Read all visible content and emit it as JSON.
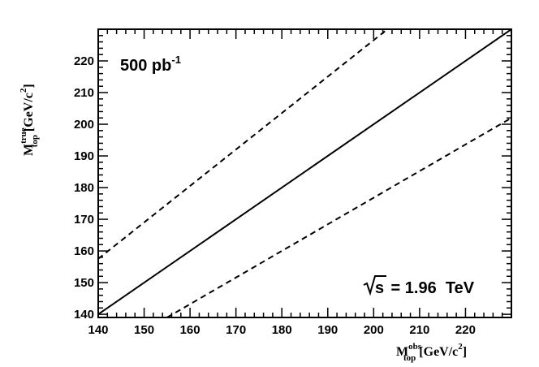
{
  "chart_data": {
    "type": "line",
    "title": "",
    "xlabel": {
      "base": "M",
      "sub": "top",
      "sup": "obs",
      "unit": "[GeV/c",
      "unit_sup": "2",
      "unit_end": "]"
    },
    "ylabel": {
      "base": "M",
      "sub": "top",
      "sup": "true",
      "unit": "[GeV/c",
      "unit_sup": "2",
      "unit_end": "]"
    },
    "xlim": [
      140,
      230
    ],
    "ylim": [
      139,
      230
    ],
    "x_ticks": [
      140,
      150,
      160,
      170,
      180,
      190,
      200,
      210,
      220
    ],
    "y_ticks": [
      140,
      150,
      160,
      170,
      180,
      190,
      200,
      210,
      220
    ],
    "grid": false,
    "series": [
      {
        "style": "solid",
        "x": [
          140,
          230
        ],
        "y": [
          140,
          230
        ]
      },
      {
        "style": "dashed",
        "x": [
          140,
          203
        ],
        "y": [
          157.5,
          230
        ]
      },
      {
        "style": "dashed",
        "x": [
          155,
          230
        ],
        "y": [
          139,
          202
        ]
      }
    ],
    "annotations": [
      {
        "id": "lumi",
        "text": "500 pb",
        "sup": "-1"
      },
      {
        "id": "energy",
        "root": "√",
        "over": "s",
        "text": " = 1.96  TeV"
      }
    ]
  }
}
